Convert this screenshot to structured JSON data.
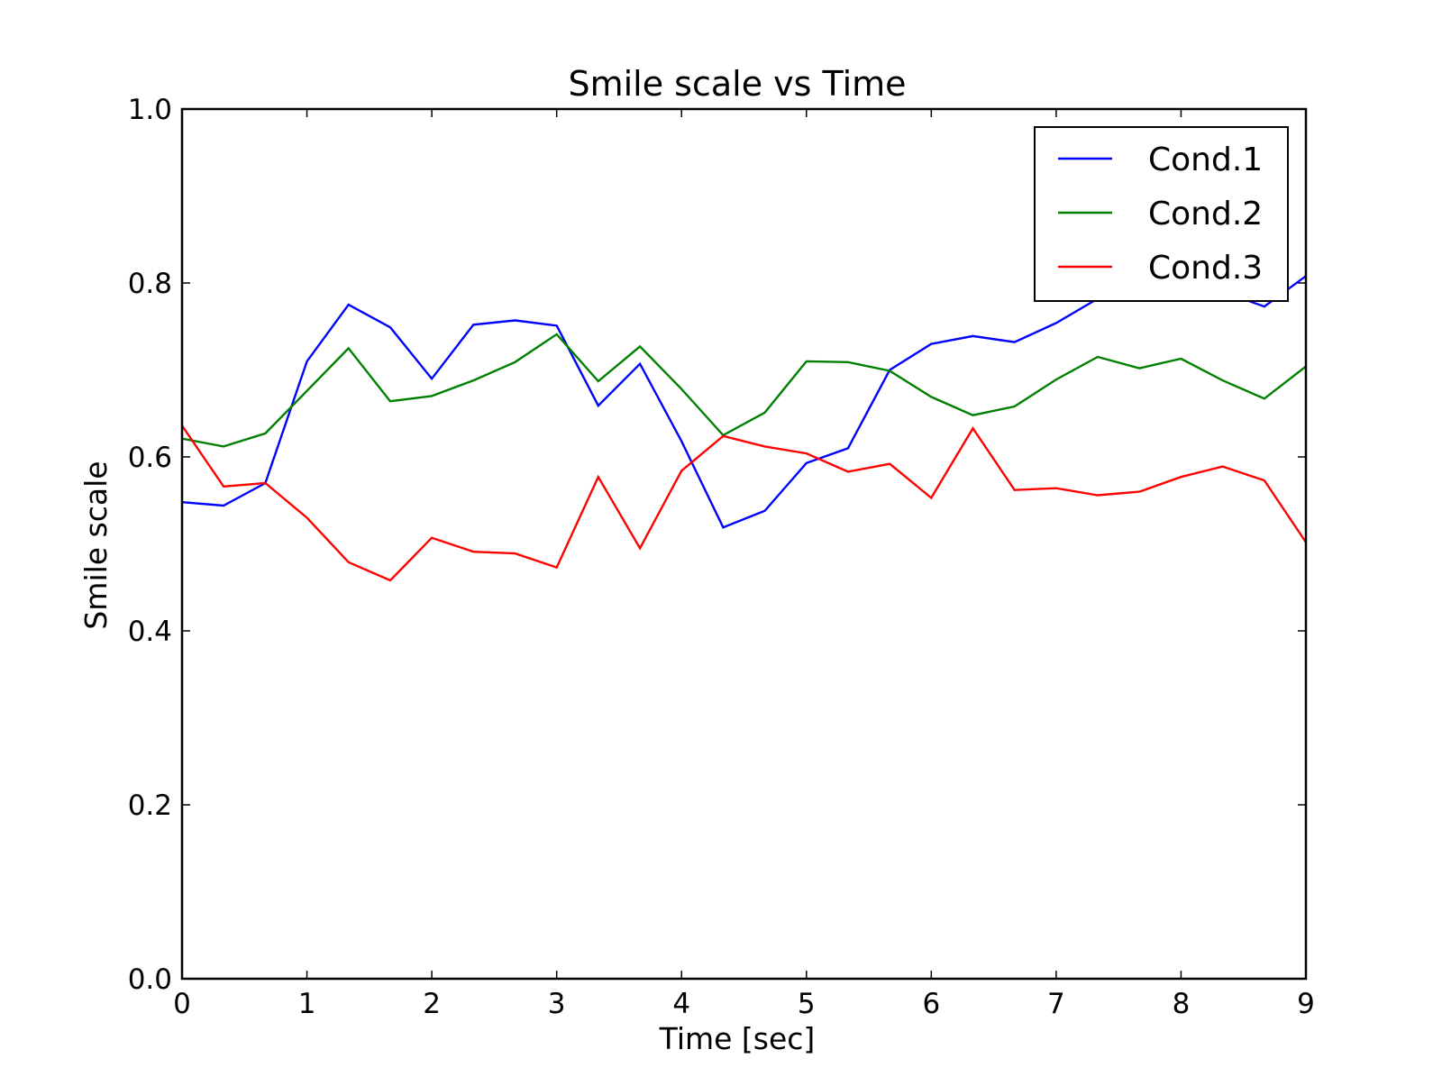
{
  "chart_data": {
    "type": "line",
    "title": "Smile scale vs Time",
    "xlabel": "Time [sec]",
    "ylabel": "Smile scale",
    "xlim": [
      0,
      9
    ],
    "ylim": [
      0.0,
      1.0
    ],
    "xticks": [
      "0",
      "1",
      "2",
      "3",
      "4",
      "5",
      "6",
      "7",
      "8",
      "9"
    ],
    "yticks": [
      "0.0",
      "0.2",
      "0.4",
      "0.6",
      "0.8",
      "1.0"
    ],
    "grid": false,
    "legend_position": "top-right",
    "x": [
      0,
      0.333,
      0.667,
      1.0,
      1.333,
      1.667,
      2.0,
      2.333,
      2.667,
      3.0,
      3.333,
      3.667,
      4.0,
      4.333,
      4.667,
      5.0,
      5.333,
      5.667,
      6.0,
      6.333,
      6.667,
      7.0,
      7.333,
      7.667,
      8.0,
      8.333,
      8.667,
      9.0
    ],
    "series": [
      {
        "name": "Cond.1",
        "color": "#0000ff",
        "values": [
          0.548,
          0.544,
          0.57,
          0.71,
          0.775,
          0.749,
          0.69,
          0.752,
          0.757,
          0.751,
          0.659,
          0.707,
          0.618,
          0.519,
          0.538,
          0.593,
          0.61,
          0.7,
          0.73,
          0.739,
          0.732,
          0.754,
          0.782,
          0.8,
          0.802,
          0.79,
          0.773,
          0.808
        ]
      },
      {
        "name": "Cond.2",
        "color": "#008000",
        "values": [
          0.621,
          0.612,
          0.627,
          0.676,
          0.725,
          0.664,
          0.67,
          0.688,
          0.709,
          0.741,
          0.687,
          0.727,
          0.678,
          0.625,
          0.651,
          0.71,
          0.709,
          0.699,
          0.669,
          0.648,
          0.658,
          0.689,
          0.715,
          0.702,
          0.713,
          0.688,
          0.667,
          0.704
        ]
      },
      {
        "name": "Cond.3",
        "color": "#ff0000",
        "values": [
          0.636,
          0.566,
          0.57,
          0.53,
          0.479,
          0.458,
          0.507,
          0.491,
          0.489,
          0.473,
          0.577,
          0.495,
          0.584,
          0.624,
          0.612,
          0.604,
          0.583,
          0.592,
          0.553,
          0.633,
          0.562,
          0.564,
          0.556,
          0.56,
          0.577,
          0.589,
          0.573,
          0.502
        ]
      }
    ]
  }
}
